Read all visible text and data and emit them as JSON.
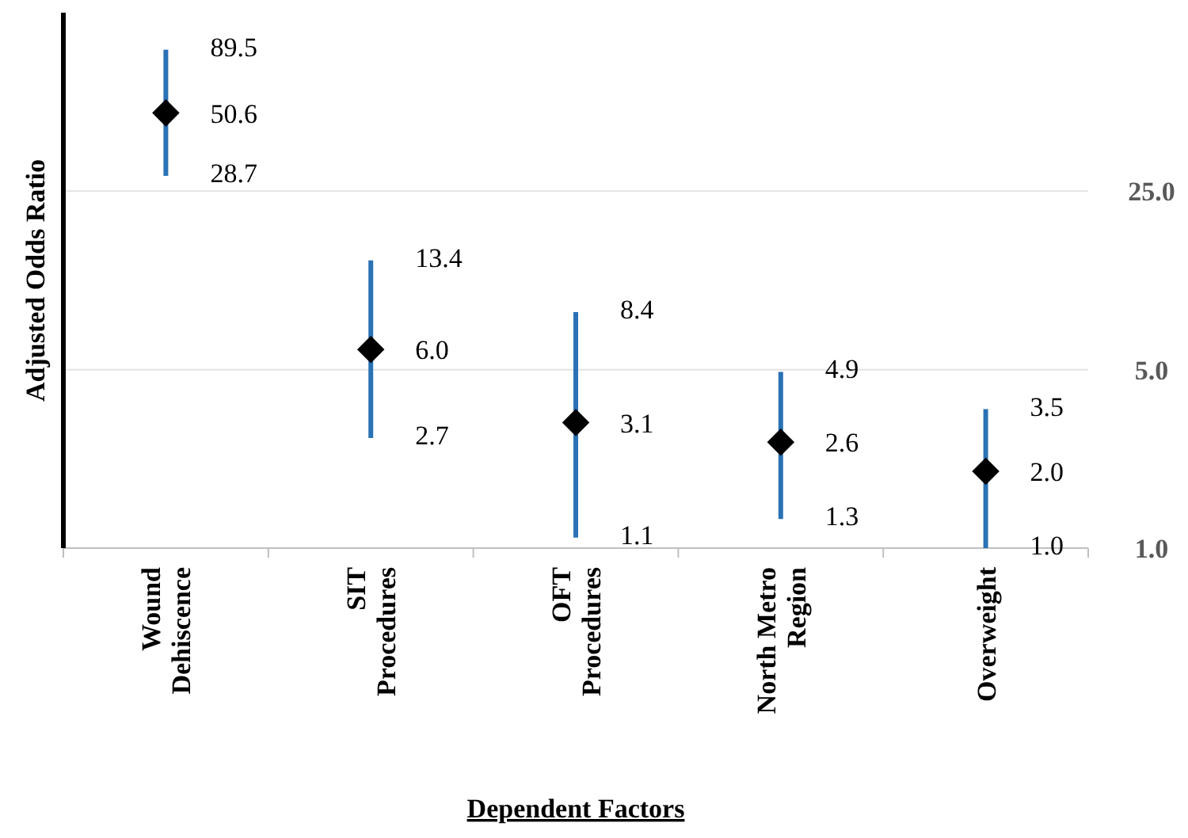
{
  "chart_data": {
    "type": "scatter",
    "xlabel": "Dependent Factors",
    "ylabel": "Adjusted Odds Ratio",
    "categories": [
      "Wound Dehiscence",
      "SIT Procedures",
      "OFT Procedures",
      "North Metro Region",
      "Overweight"
    ],
    "series": [
      {
        "color": "#000000",
        "values": [
          50.6,
          6.0,
          3.1,
          2.6,
          2.0
        ],
        "value_labels": [
          "50.6",
          "6.0",
          "3.1",
          "2.6",
          "2.0"
        ],
        "errors": [
          [
            28.7,
            89.5
          ],
          [
            2.7,
            13.4
          ],
          [
            1.1,
            8.4
          ],
          [
            1.3,
            4.9
          ],
          [
            1.0,
            3.5
          ]
        ]
      }
    ],
    "annotations": [
      {
        "text": "89.5",
        "x": "Wound Dehiscence",
        "y": 89.5
      },
      {
        "text": "28.7",
        "x": "Wound Dehiscence",
        "y": 28.7
      },
      {
        "text": "13.4",
        "x": "SIT Procedures",
        "y": 13.4
      },
      {
        "text": "2.7",
        "x": "SIT Procedures",
        "y": 2.7
      },
      {
        "text": "8.4",
        "x": "OFT Procedures",
        "y": 8.4
      },
      {
        "text": "1.1",
        "x": "OFT Procedures",
        "y": 1.1
      },
      {
        "text": "4.9",
        "x": "North Metro Region",
        "y": 4.9
      },
      {
        "text": "1.3",
        "x": "North Metro Region",
        "y": 1.3
      },
      {
        "text": "3.5",
        "x": "Overweight",
        "y": 3.5
      },
      {
        "text": "1.0",
        "x": "Overweight",
        "y": 1.0
      }
    ],
    "marker": "diamond",
    "log": "y",
    "ylim": [
      1,
      125
    ],
    "yticks": [
      {
        "value": 1,
        "label": "1.0"
      },
      {
        "value": 5,
        "label": "5.0"
      },
      {
        "value": 25,
        "label": "25.0"
      }
    ],
    "grid": "y"
  }
}
